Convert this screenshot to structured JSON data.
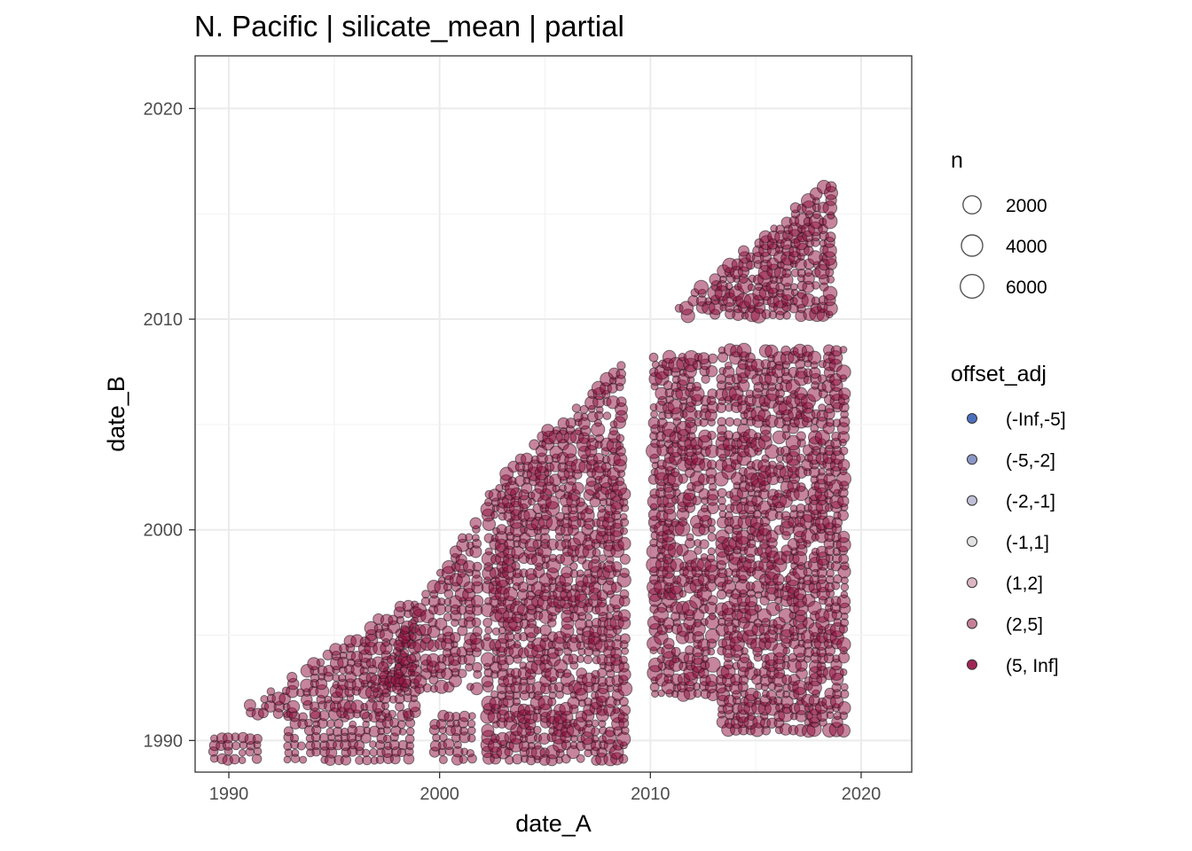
{
  "chart_data": {
    "type": "scatter",
    "title": "N. Pacific | silicate_mean | partial",
    "xlabel": "date_A",
    "ylabel": "date_B",
    "xlim": [
      1988.4,
      2022.4
    ],
    "ylim": [
      1988.5,
      2022.5
    ],
    "x_ticks": [
      {
        "value": 1990,
        "label": "1990"
      },
      {
        "value": 2000,
        "label": "2000"
      },
      {
        "value": 2010,
        "label": "2010"
      },
      {
        "value": 2020,
        "label": "2020"
      }
    ],
    "y_ticks": [
      {
        "value": 1990,
        "label": "1990"
      },
      {
        "value": 2000,
        "label": "2000"
      },
      {
        "value": 2010,
        "label": "2010"
      },
      {
        "value": 2020,
        "label": "2020"
      }
    ],
    "grid": true,
    "point_fill": "#8e0b3c",
    "point_stroke": "#1a1a1a",
    "size_legend": {
      "title": "n",
      "entries": [
        {
          "value": 2000,
          "label": "2000"
        },
        {
          "value": 4000,
          "label": "4000"
        },
        {
          "value": 6000,
          "label": "6000"
        }
      ]
    },
    "color_legend": {
      "title": "offset_adj",
      "entries": [
        {
          "label": "(-Inf,-5]",
          "color": "#4a6fbf"
        },
        {
          "label": "(-5,-2]",
          "color": "#8a97c6"
        },
        {
          "label": "(-2,-1]",
          "color": "#bfbfd8"
        },
        {
          "label": "(-1,1]",
          "color": "#e2e2e2"
        },
        {
          "label": "(1,2]",
          "color": "#dcb6c4"
        },
        {
          "label": "(2,5]",
          "color": "#c67f99"
        },
        {
          "label": "(5, Inf]",
          "color": "#a02656"
        }
      ]
    },
    "series": [
      {
        "color_class": "(5, Inf]",
        "regions": [
          {
            "x_range": [
              1989.3,
              1991.5
            ],
            "y_range": [
              1989.1,
              1990.4
            ],
            "n_range": [
              300,
              1800
            ]
          },
          {
            "x_range": [
              1992.8,
              1998.6
            ],
            "y_range": [
              1989.1,
              1991.3
            ],
            "n_range": [
              300,
              1800
            ]
          },
          {
            "x_range": [
              1999.8,
              2001.6
            ],
            "y_range": [
              1989.1,
              1991.3
            ],
            "n_range": [
              300,
              1800
            ]
          },
          {
            "x_range": [
              1991.0,
              1998.9
            ],
            "y_range": [
              1991.3,
              1996.5
            ],
            "n_range": [
              300,
              3200
            ],
            "triangle": true
          },
          {
            "x_range": [
              1997.0,
              2002.0
            ],
            "y_range": [
              1992.5,
              2000.5
            ],
            "n_range": [
              300,
              3200
            ],
            "triangle": true
          },
          {
            "x_range": [
              2002.3,
              2008.9
            ],
            "y_range": [
              1989.1,
              2002.0
            ],
            "n_range": [
              300,
              3800
            ]
          },
          {
            "x_range": [
              2002.8,
              2008.9
            ],
            "y_range": [
              2002.0,
              2007.8
            ],
            "n_range": [
              300,
              3800
            ],
            "triangle": true
          },
          {
            "x_range": [
              2010.2,
              2013.2
            ],
            "y_range": [
              1992.2,
              2008.3
            ],
            "n_range": [
              300,
              4500
            ]
          },
          {
            "x_range": [
              2013.4,
              2019.5
            ],
            "y_range": [
              1990.5,
              2008.6
            ],
            "n_range": [
              300,
              4000
            ]
          },
          {
            "x_range": [
              2011.4,
              2018.8
            ],
            "y_range": [
              2010.2,
              2016.5
            ],
            "n_range": [
              300,
              4500
            ],
            "triangle": true
          }
        ]
      }
    ]
  }
}
